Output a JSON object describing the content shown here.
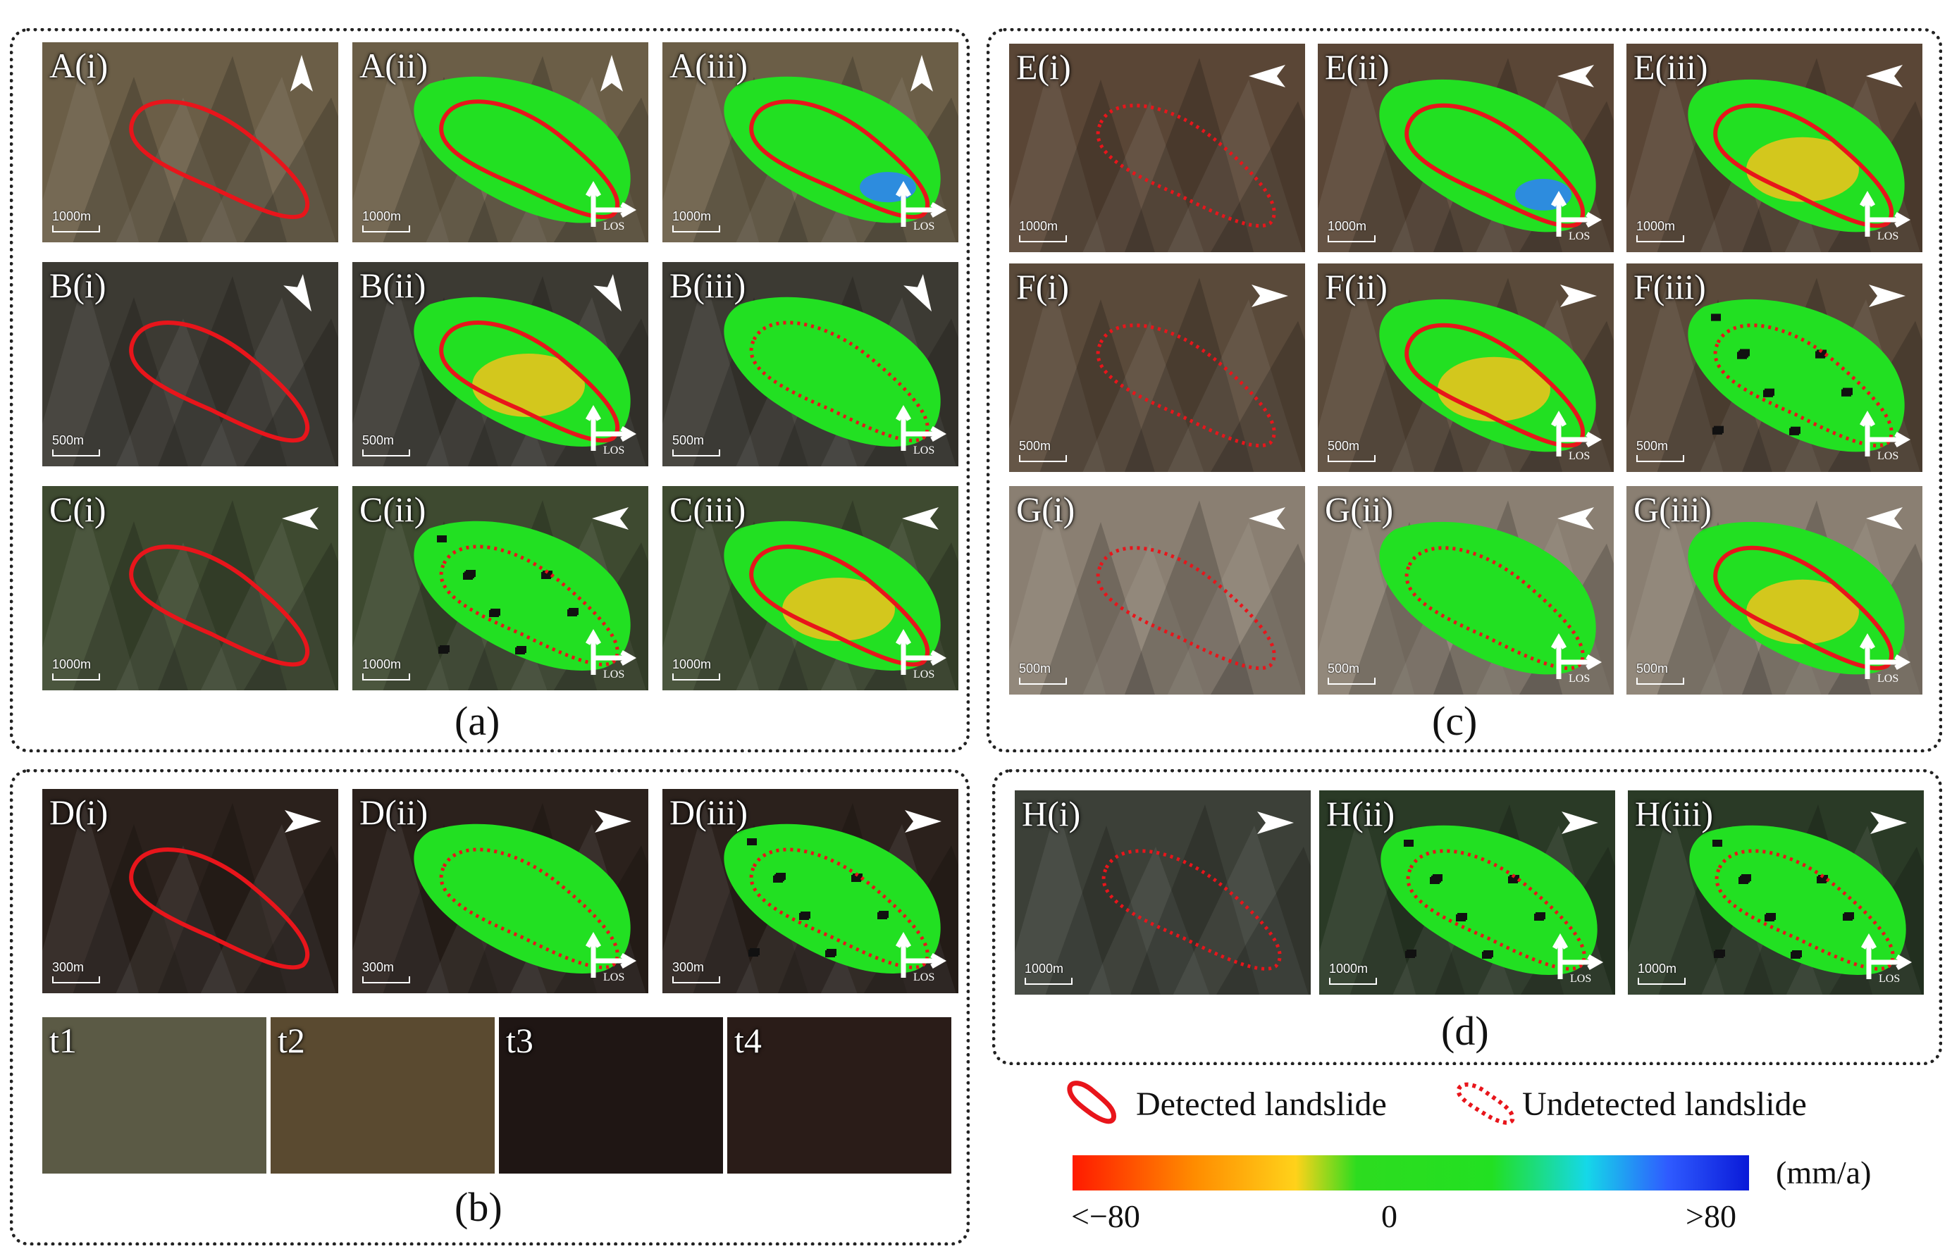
{
  "panels": {
    "A_i": "A(i)",
    "A_ii": "A(ii)",
    "A_iii": "A(iii)",
    "B_i": "B(i)",
    "B_ii": "B(ii)",
    "B_iii": "B(iii)",
    "C_i": "C(i)",
    "C_ii": "C(ii)",
    "C_iii": "C(iii)",
    "D_i": "D(i)",
    "D_ii": "D(ii)",
    "D_iii": "D(iii)",
    "E_i": "E(i)",
    "E_ii": "E(ii)",
    "E_iii": "E(iii)",
    "F_i": "F(i)",
    "F_ii": "F(ii)",
    "F_iii": "F(iii)",
    "G_i": "G(i)",
    "G_ii": "G(ii)",
    "G_iii": "G(iii)",
    "H_i": "H(i)",
    "H_ii": "H(ii)",
    "H_iii": "H(iii)"
  },
  "scales": {
    "s1000": "1000m",
    "s500": "500m",
    "s300": "300m"
  },
  "north_label": "N",
  "los_label": "LOS",
  "time_strip": [
    "t1",
    "t2",
    "t3",
    "t4"
  ],
  "captions": {
    "a": "(a)",
    "b": "(b)",
    "c": "(c)",
    "d": "(d)"
  },
  "legend": {
    "detected": "Detected landslide",
    "undetected": "Undetected landslide",
    "unit": "(mm/a)",
    "min_label": "<−80",
    "zero_label": "0",
    "max_label": ">80"
  },
  "colors": {
    "detected_outline": "#e8151b",
    "undetected_outline": "#e8151b",
    "stable_green": "#22e022",
    "ramp_negative": "#ff1a00",
    "ramp_zero": "#22e022",
    "ramp_positive": "#0a1ad8"
  }
}
